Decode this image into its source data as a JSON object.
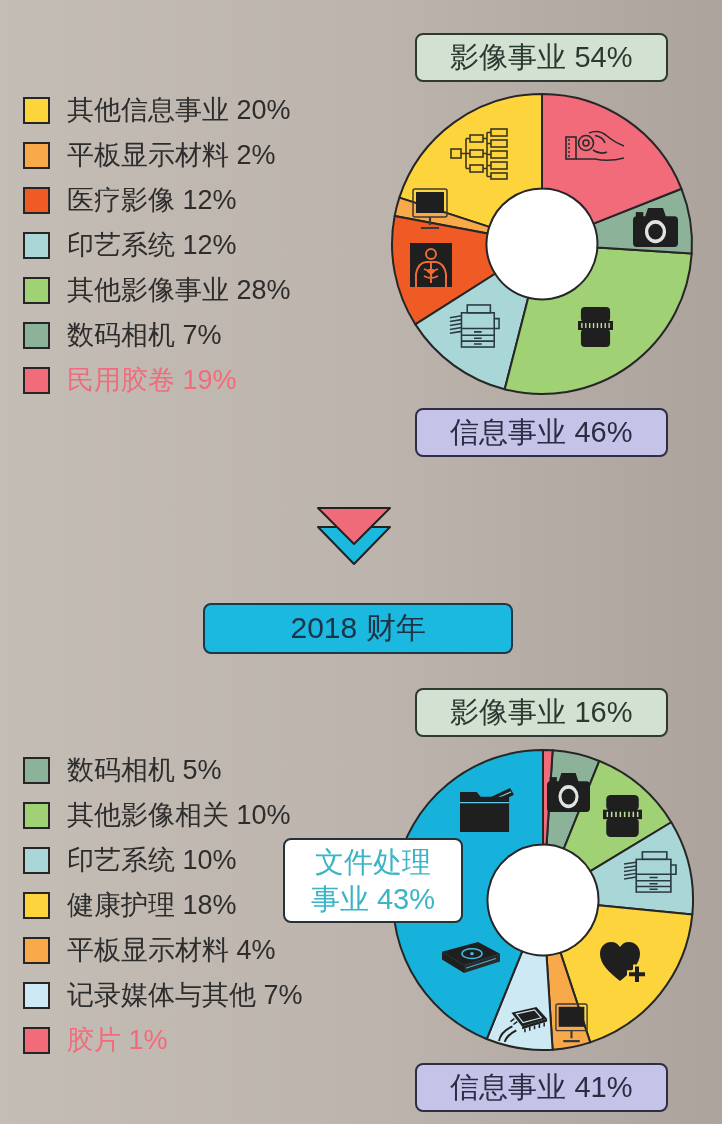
{
  "chart_data": [
    {
      "type": "donut",
      "categories": [
        "其他信息事业",
        "平板显示材料",
        "医疗影像",
        "印艺系统",
        "其他影像事业",
        "数码相机",
        "民用胶卷"
      ],
      "values": [
        20,
        2,
        12,
        12,
        28,
        7,
        19
      ],
      "value_labels": [
        "20%",
        "2%",
        "12%",
        "12%",
        "28%",
        "7%",
        "19%"
      ],
      "colors": [
        "#fdd43c",
        "#f8a94a",
        "#ef5a25",
        "#a9d6d6",
        "#a0d174",
        "#8cb29a",
        "#f16b7b"
      ],
      "legend": "left",
      "annotations": [
        "影像事业 54%",
        "信息事业 46%"
      ]
    },
    {
      "type": "donut",
      "title": "2018 财年",
      "categories": [
        "数码相机",
        "其他影像相关",
        "印艺系统",
        "健康护理",
        "平板显示材料",
        "记录媒体与其他",
        null,
        "胶片"
      ],
      "values": [
        5,
        10,
        10,
        18,
        4,
        7,
        43,
        1
      ],
      "value_labels": [
        "5%",
        "10%",
        "10%",
        "18%",
        "4%",
        "7%",
        null,
        "1%"
      ],
      "colors": [
        "#8cb29a",
        "#a0d174",
        "#a9d6d6",
        "#fdd43c",
        "#f8a94a",
        "#cde9f4",
        "#17b2db",
        "#f16b7b"
      ],
      "legend": "left",
      "annotations": [
        "影像事业 16%",
        "信息事业 41%",
        "文件处理事业 43%"
      ]
    }
  ]
}
